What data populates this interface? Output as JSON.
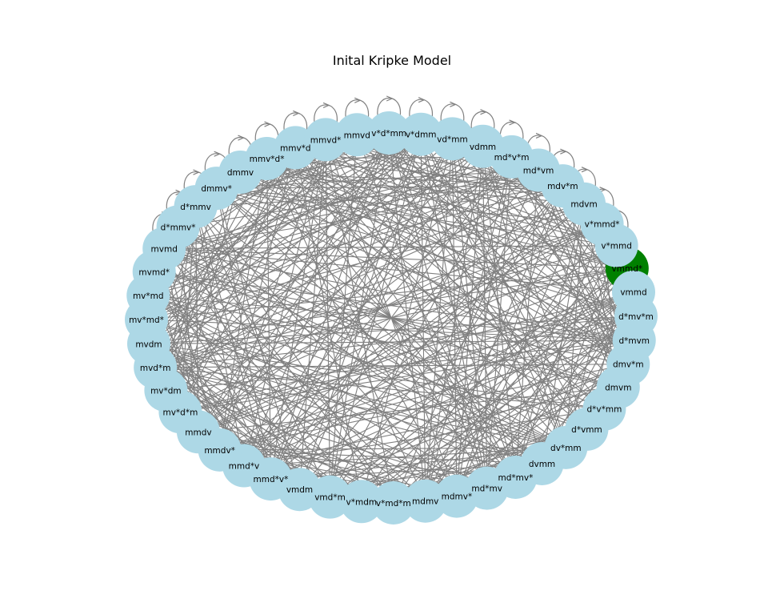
{
  "title": "Inital Kripke Model",
  "colors": {
    "node": "#add8e6",
    "highlight": "#008000",
    "edge": "#808080"
  },
  "nodes": [
    {
      "label": "vmmd*",
      "highlight": true
    },
    {
      "label": "vmmd"
    },
    {
      "label": "d*mv*m"
    },
    {
      "label": "d*mvm"
    },
    {
      "label": "dmv*m"
    },
    {
      "label": "dmvm"
    },
    {
      "label": "d*v*mm"
    },
    {
      "label": "d*vmm"
    },
    {
      "label": "dv*mm"
    },
    {
      "label": "dvmm"
    },
    {
      "label": "md*mv*"
    },
    {
      "label": "md*mv"
    },
    {
      "label": "mdmv*"
    },
    {
      "label": "mdmv"
    },
    {
      "label": "v*md*m"
    },
    {
      "label": "v*mdm"
    },
    {
      "label": "vmd*m"
    },
    {
      "label": "vmdm"
    },
    {
      "label": "mmd*v*"
    },
    {
      "label": "mmd*v"
    },
    {
      "label": "mmdv*"
    },
    {
      "label": "mmdv"
    },
    {
      "label": "mv*d*m"
    },
    {
      "label": "mv*dm"
    },
    {
      "label": "mvd*m"
    },
    {
      "label": "mvdm"
    },
    {
      "label": "mv*md*"
    },
    {
      "label": "mv*md"
    },
    {
      "label": "mvmd*"
    },
    {
      "label": "mvmd"
    },
    {
      "label": "d*mmv*"
    },
    {
      "label": "d*mmv"
    },
    {
      "label": "dmmv*"
    },
    {
      "label": "dmmv"
    },
    {
      "label": "mmv*d*"
    },
    {
      "label": "mmv*d"
    },
    {
      "label": "mmvd*"
    },
    {
      "label": "mmvd"
    },
    {
      "label": "v*d*mm"
    },
    {
      "label": "v*dmm"
    },
    {
      "label": "vd*mm"
    },
    {
      "label": "vdmm"
    },
    {
      "label": "md*v*m"
    },
    {
      "label": "md*vm"
    },
    {
      "label": "mdv*m"
    },
    {
      "label": "mdvm"
    },
    {
      "label": "v*mmd*"
    },
    {
      "label": "v*mmd"
    }
  ]
}
